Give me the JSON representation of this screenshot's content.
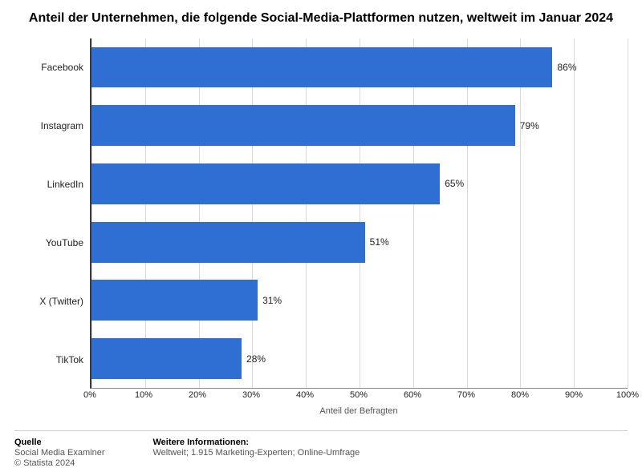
{
  "chart": {
    "type": "bar-horizontal",
    "title": "Anteil der Unternehmen, die folgende Social-Media-Plattformen nutzen, weltweit im Januar 2024",
    "title_fontsize": 16,
    "title_color": "#000000",
    "categories": [
      "Facebook",
      "Instagram",
      "LinkedIn",
      "YouTube",
      "X (Twitter)",
      "TikTok"
    ],
    "values": [
      86,
      79,
      65,
      51,
      31,
      28
    ],
    "value_labels": [
      "86%",
      "79%",
      "65%",
      "51%",
      "31%",
      "28%"
    ],
    "bar_color": "#2f6fd3",
    "bar_height_ratio": 0.7,
    "background_color": "#ffffff",
    "grid_color": "#d9d9d9",
    "axis_color": "#3a3a3a",
    "text_color": "#222222",
    "category_fontsize": 12,
    "value_fontsize": 12,
    "xaxis": {
      "min": 0,
      "max": 100,
      "tick_step": 10,
      "tick_labels": [
        "0%",
        "10%",
        "20%",
        "30%",
        "40%",
        "50%",
        "60%",
        "70%",
        "80%",
        "90%",
        "100%"
      ],
      "tick_fontsize": 11,
      "title": "Anteil der Befragten",
      "title_fontsize": 11,
      "title_color": "#555555"
    }
  },
  "footer": {
    "source_head": "Quelle",
    "source_line1": "Social Media Examiner",
    "source_line2": "© Statista 2024",
    "info_head": "Weitere Informationen:",
    "info_line": "Weltweit; 1.915 Marketing-Experten; Online-Umfrage",
    "fontsize": 11,
    "head_color": "#000000",
    "line_color": "#555555"
  }
}
